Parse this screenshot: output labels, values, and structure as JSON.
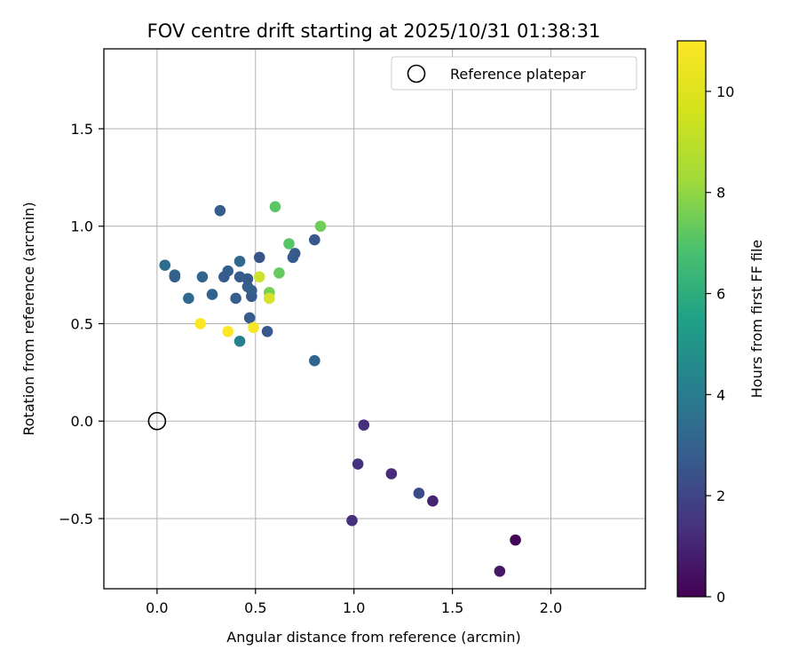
{
  "chart_data": {
    "type": "scatter",
    "title": "FOV centre drift starting at 2025/10/31 01:38:31",
    "xlabel": "Angular distance from reference (arcmin)",
    "ylabel": "Rotation from reference (arcmin)",
    "xlim": [
      -0.27,
      2.48
    ],
    "ylim": [
      -0.86,
      1.91
    ],
    "xticks": [
      0.0,
      0.5,
      1.0,
      1.5,
      2.0
    ],
    "xtick_labels": [
      "0.0",
      "0.5",
      "1.0",
      "1.5",
      "2.0"
    ],
    "yticks": [
      -0.5,
      0.0,
      0.5,
      1.0,
      1.5
    ],
    "ytick_labels": [
      "−0.5",
      "0.0",
      "0.5",
      "1.0",
      "1.5"
    ],
    "grid": true,
    "legend": {
      "position": "top-right",
      "label": "Reference platepar"
    },
    "reference": {
      "x": 0.0,
      "y": 0.0
    },
    "colorbar": {
      "label": "Hours from first FF file",
      "colormap": "viridis",
      "range": [
        0,
        11
      ],
      "ticks": [
        0,
        2,
        4,
        6,
        8,
        10
      ],
      "tick_labels": [
        "0",
        "2",
        "4",
        "6",
        "8",
        "10"
      ]
    },
    "points": [
      {
        "x": 1.82,
        "y": -0.61,
        "h": 0.1
      },
      {
        "x": 1.74,
        "y": -0.77,
        "h": 0.7
      },
      {
        "x": 1.4,
        "y": -0.41,
        "h": 1.1
      },
      {
        "x": 1.33,
        "y": -0.37,
        "h": 2.5
      },
      {
        "x": 1.19,
        "y": -0.27,
        "h": 1.4
      },
      {
        "x": 1.05,
        "y": -0.02,
        "h": 1.5
      },
      {
        "x": 1.02,
        "y": -0.22,
        "h": 1.6
      },
      {
        "x": 0.99,
        "y": -0.51,
        "h": 1.5
      },
      {
        "x": 0.8,
        "y": 0.31,
        "h": 3.6
      },
      {
        "x": 0.8,
        "y": 0.93,
        "h": 3.0
      },
      {
        "x": 0.7,
        "y": 0.86,
        "h": 3.1
      },
      {
        "x": 0.69,
        "y": 0.84,
        "h": 3.2
      },
      {
        "x": 0.56,
        "y": 0.46,
        "h": 3.1
      },
      {
        "x": 0.52,
        "y": 0.84,
        "h": 2.9
      },
      {
        "x": 0.48,
        "y": 0.64,
        "h": 3.0
      },
      {
        "x": 0.47,
        "y": 0.53,
        "h": 3.2
      },
      {
        "x": 0.46,
        "y": 0.69,
        "h": 3.3
      },
      {
        "x": 0.48,
        "y": 0.67,
        "h": 3.4
      },
      {
        "x": 0.46,
        "y": 0.73,
        "h": 3.1
      },
      {
        "x": 0.42,
        "y": 0.74,
        "h": 3.2
      },
      {
        "x": 0.42,
        "y": 0.82,
        "h": 3.8
      },
      {
        "x": 0.42,
        "y": 0.41,
        "h": 4.8
      },
      {
        "x": 0.4,
        "y": 0.63,
        "h": 3.3
      },
      {
        "x": 0.36,
        "y": 0.77,
        "h": 3.4
      },
      {
        "x": 0.34,
        "y": 0.74,
        "h": 3.2
      },
      {
        "x": 0.32,
        "y": 1.08,
        "h": 3.3
      },
      {
        "x": 0.28,
        "y": 0.65,
        "h": 3.5
      },
      {
        "x": 0.23,
        "y": 0.74,
        "h": 3.6
      },
      {
        "x": 0.16,
        "y": 0.63,
        "h": 3.8
      },
      {
        "x": 0.09,
        "y": 0.75,
        "h": 3.9
      },
      {
        "x": 0.09,
        "y": 0.74,
        "h": 3.4
      },
      {
        "x": 0.04,
        "y": 0.8,
        "h": 4.0
      },
      {
        "x": 0.6,
        "y": 1.1,
        "h": 8.2
      },
      {
        "x": 0.83,
        "y": 1.0,
        "h": 8.6
      },
      {
        "x": 0.67,
        "y": 0.91,
        "h": 8.1
      },
      {
        "x": 0.62,
        "y": 0.76,
        "h": 8.4
      },
      {
        "x": 0.57,
        "y": 0.66,
        "h": 8.7
      },
      {
        "x": 0.52,
        "y": 0.74,
        "h": 10.2
      },
      {
        "x": 0.57,
        "y": 0.63,
        "h": 10.4
      },
      {
        "x": 0.49,
        "y": 0.48,
        "h": 10.9
      },
      {
        "x": 0.36,
        "y": 0.46,
        "h": 11.0
      },
      {
        "x": 0.22,
        "y": 0.5,
        "h": 11.0
      }
    ]
  }
}
